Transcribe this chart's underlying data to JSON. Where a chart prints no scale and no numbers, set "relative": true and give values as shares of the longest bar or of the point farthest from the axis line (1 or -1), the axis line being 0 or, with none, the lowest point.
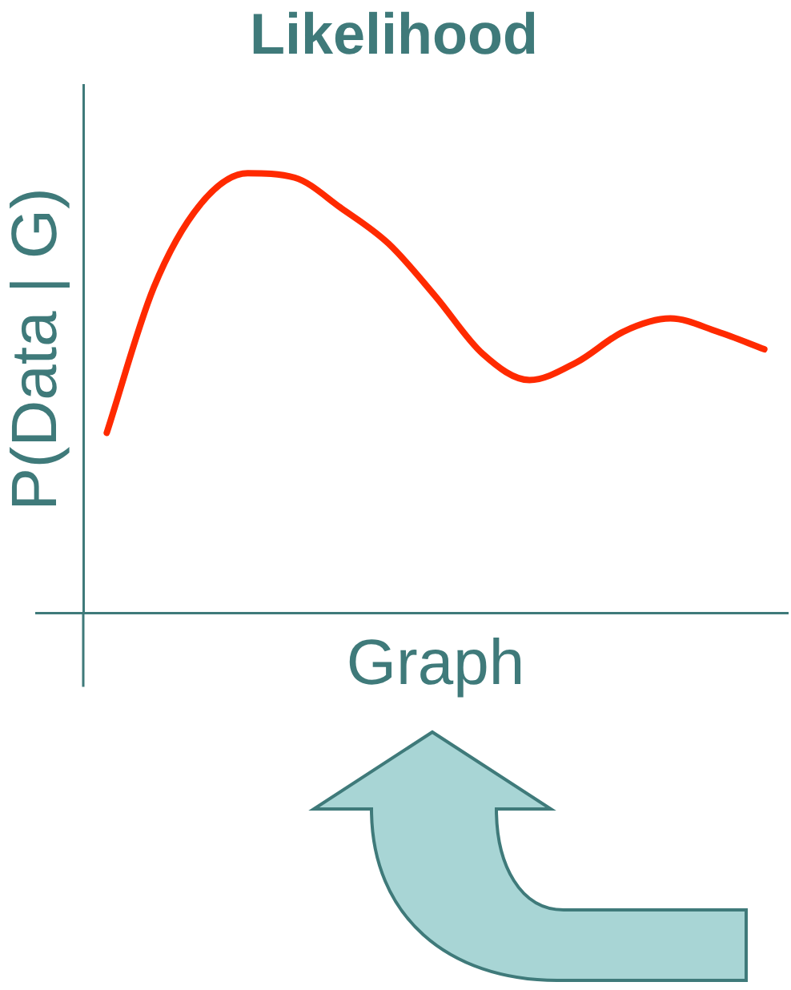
{
  "chart_data": {
    "type": "line",
    "title": "Likelihood",
    "xlabel": "Graph",
    "ylabel": "P(Data | G)",
    "relative": true,
    "legend": false,
    "grid": false,
    "marker": "none",
    "line_style": "solid",
    "categories": [
      null,
      null,
      null,
      null,
      null,
      null,
      null,
      null,
      null,
      null,
      null,
      null,
      null,
      null,
      null
    ],
    "series": [
      {
        "color": "#ff2a00",
        "values": [
          0.41,
          0.74,
          0.93,
          1,
          0.99,
          0.92,
          0.84,
          0.72,
          0.59,
          0.53,
          0.57,
          0.64,
          0.67,
          0.64,
          0.6
        ]
      }
    ]
  }
}
